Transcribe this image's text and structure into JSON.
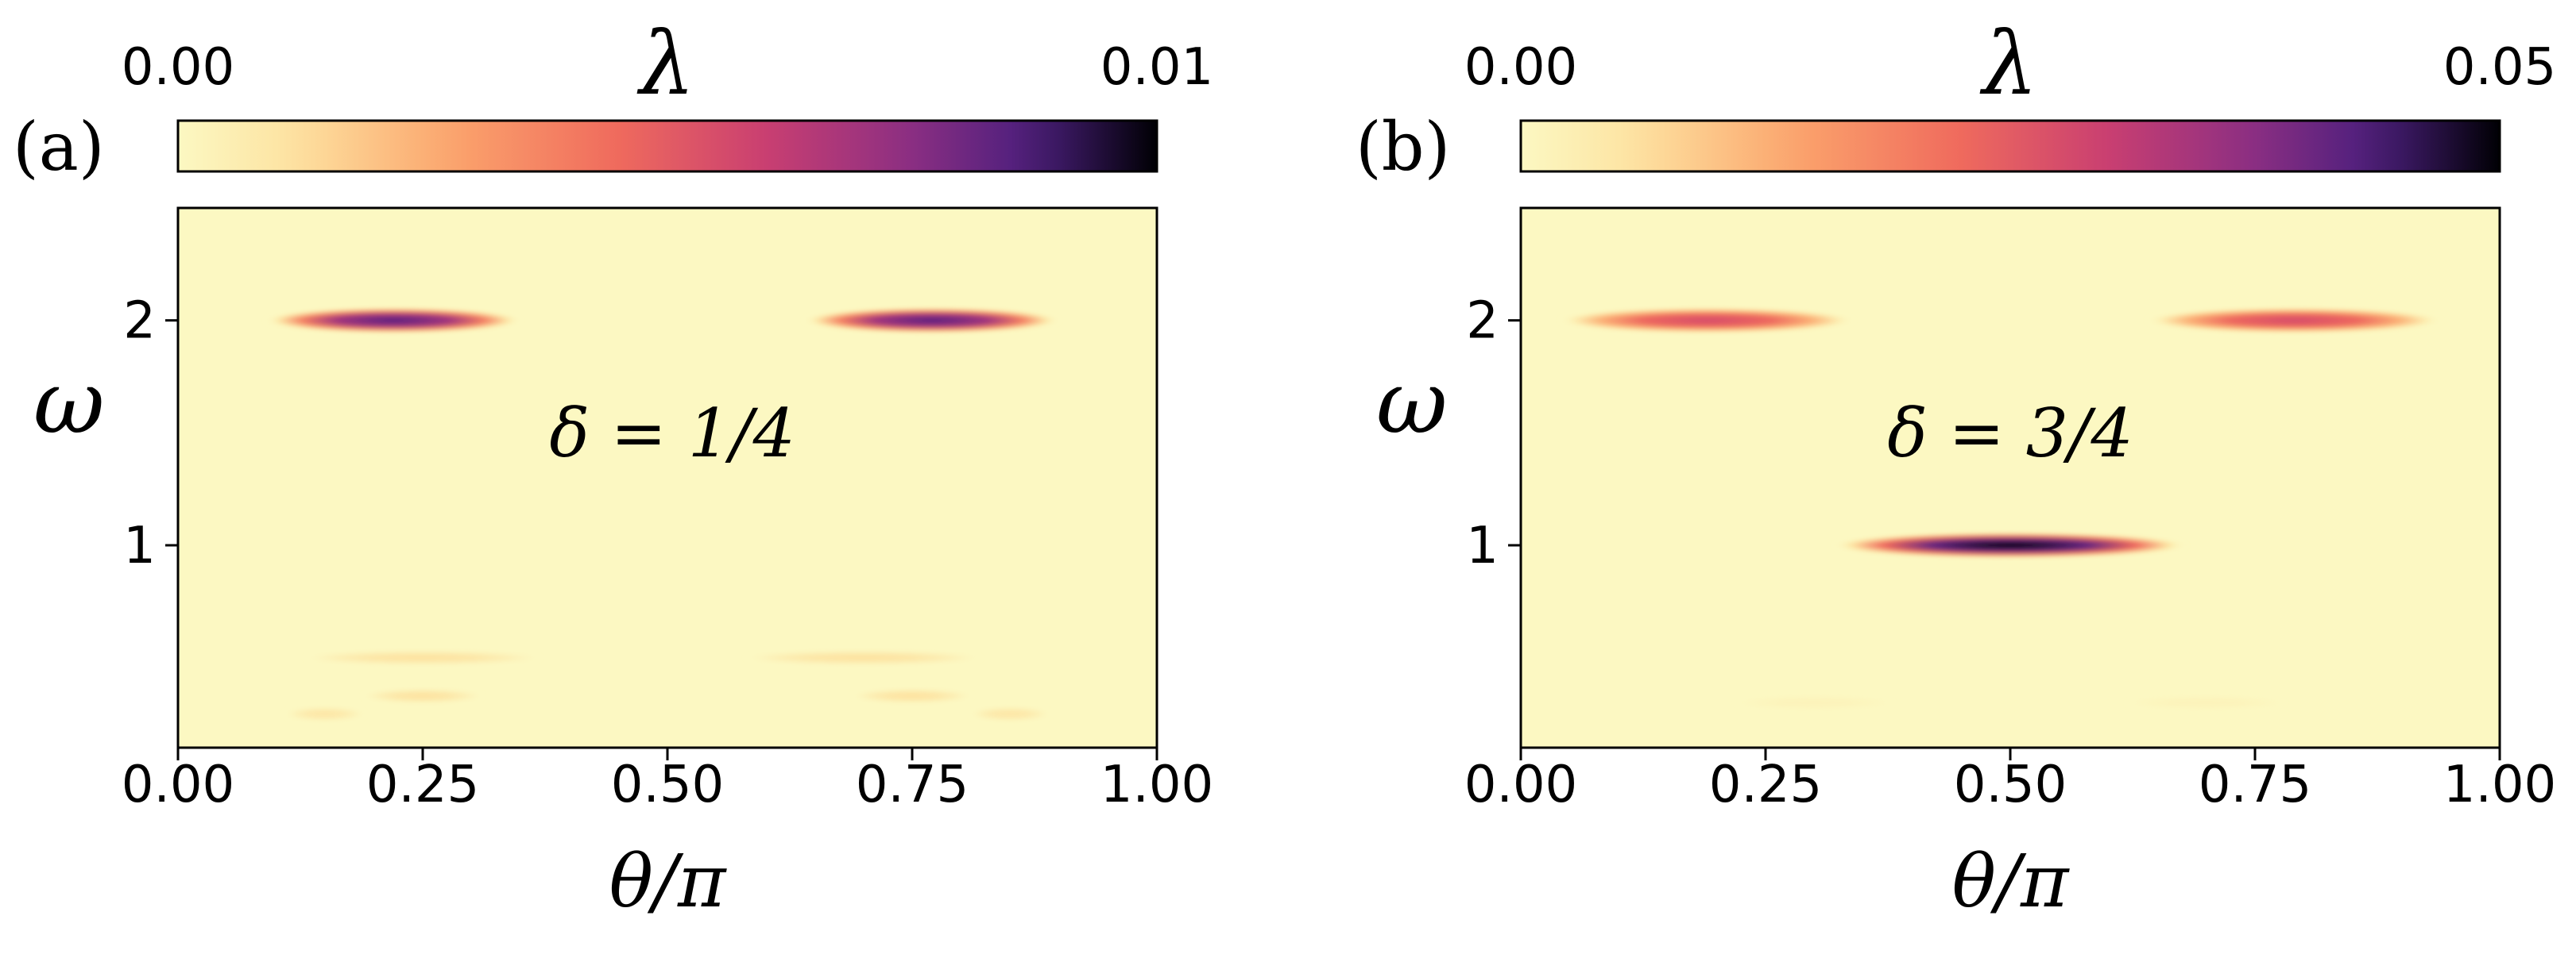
{
  "chart_data": [
    {
      "type": "heatmap",
      "panel_label": "(a)",
      "colorbar": {
        "label": "λ",
        "min_label": "0.00",
        "max_label": "0.01",
        "range": [
          0.0,
          0.01
        ],
        "colormap": "magma_r"
      },
      "annotation": "δ = 1/4",
      "xlabel": "θ/π",
      "ylabel": "ω",
      "xlim": [
        0.0,
        1.0
      ],
      "ylim": [
        0.1,
        2.5
      ],
      "xticks": [
        0.0,
        0.25,
        0.5,
        0.75,
        1.0
      ],
      "xtick_labels": [
        "0.00",
        "0.25",
        "0.50",
        "0.75",
        "1.00"
      ],
      "yticks": [
        1,
        2
      ],
      "ytick_labels": [
        "1",
        "2"
      ],
      "features": [
        {
          "x_center": 0.22,
          "x_half_width": 0.13,
          "y": 2.0,
          "peak": 0.0085
        },
        {
          "x_center": 0.77,
          "x_half_width": 0.13,
          "y": 2.0,
          "peak": 0.0085
        },
        {
          "x_center": 0.25,
          "x_half_width": 0.12,
          "y": 0.5,
          "peak": 0.0012
        },
        {
          "x_center": 0.7,
          "x_half_width": 0.12,
          "y": 0.5,
          "peak": 0.0012
        },
        {
          "x_center": 0.25,
          "x_half_width": 0.06,
          "y": 0.33,
          "peak": 0.0012
        },
        {
          "x_center": 0.75,
          "x_half_width": 0.06,
          "y": 0.33,
          "peak": 0.0012
        },
        {
          "x_center": 0.15,
          "x_half_width": 0.04,
          "y": 0.25,
          "peak": 0.001
        },
        {
          "x_center": 0.85,
          "x_half_width": 0.04,
          "y": 0.25,
          "peak": 0.001
        }
      ]
    },
    {
      "type": "heatmap",
      "panel_label": "(b)",
      "colorbar": {
        "label": "λ",
        "min_label": "0.00",
        "max_label": "0.05",
        "range": [
          0.0,
          0.05
        ],
        "colormap": "magma_r"
      },
      "annotation": "δ = 3/4",
      "xlabel": "θ/π",
      "ylabel": "ω",
      "xlim": [
        0.0,
        1.0
      ],
      "ylim": [
        0.1,
        2.5
      ],
      "xticks": [
        0.0,
        0.25,
        0.5,
        0.75,
        1.0
      ],
      "xtick_labels": [
        "0.00",
        "0.25",
        "0.50",
        "0.75",
        "1.00"
      ],
      "yticks": [
        1,
        2
      ],
      "ytick_labels": [
        "1",
        "2"
      ],
      "features": [
        {
          "x_center": 0.19,
          "x_half_width": 0.15,
          "y": 2.0,
          "peak": 0.028
        },
        {
          "x_center": 0.79,
          "x_half_width": 0.15,
          "y": 2.0,
          "peak": 0.028
        },
        {
          "x_center": 0.5,
          "x_half_width": 0.18,
          "y": 1.0,
          "peak": 0.05
        },
        {
          "x_center": 0.3,
          "x_half_width": 0.08,
          "y": 0.3,
          "peak": 0.0015
        },
        {
          "x_center": 0.7,
          "x_half_width": 0.08,
          "y": 0.3,
          "peak": 0.0015
        }
      ]
    }
  ]
}
